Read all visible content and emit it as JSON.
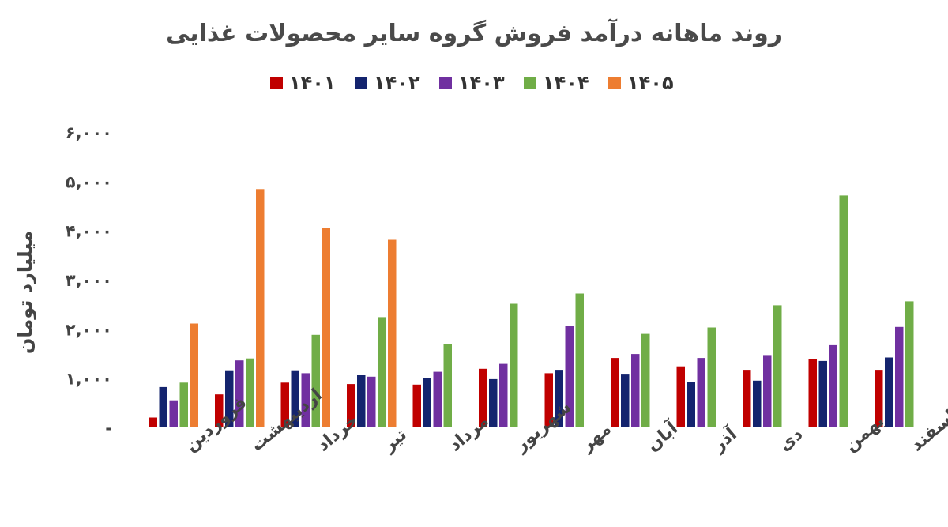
{
  "chart_data": {
    "type": "bar",
    "title": "روند ماهانه درآمد فروش گروه سایر محصولات غذایی",
    "ylabel": "میلیارد تومان",
    "xlabel": "",
    "ylim": [
      0,
      6000
    ],
    "yticks": [
      {
        "value": 0,
        "label": "-"
      },
      {
        "value": 1000,
        "label": "۱,۰۰۰"
      },
      {
        "value": 2000,
        "label": "۲,۰۰۰"
      },
      {
        "value": 3000,
        "label": "۳,۰۰۰"
      },
      {
        "value": 4000,
        "label": "۴,۰۰۰"
      },
      {
        "value": 5000,
        "label": "۵,۰۰۰"
      },
      {
        "value": 6000,
        "label": "۶,۰۰۰"
      }
    ],
    "grid": false,
    "legend_position": "top",
    "categories": [
      "فروردین",
      "اردیبهشت",
      "خرداد",
      "تیر",
      "مرداد",
      "شهریور",
      "مهر",
      "آبان",
      "آذر",
      "دی",
      "بهمن",
      "اسفند"
    ],
    "series": [
      {
        "name": "۱۴۰۱",
        "color": "#c00000",
        "values": [
          200,
          670,
          910,
          880,
          870,
          1190,
          1100,
          1410,
          1240,
          1170,
          1380,
          1170
        ]
      },
      {
        "name": "۱۴۰۲",
        "color": "#14246e",
        "values": [
          820,
          1160,
          1160,
          1060,
          1000,
          980,
          1170,
          1090,
          920,
          950,
          1350,
          1420
        ]
      },
      {
        "name": "۱۴۰۳",
        "color": "#7030a0",
        "values": [
          550,
          1360,
          1100,
          1030,
          1130,
          1290,
          2060,
          1490,
          1410,
          1470,
          1670,
          2040
        ]
      },
      {
        "name": "۱۴۰۴",
        "color": "#70ad47",
        "values": [
          910,
          1400,
          1880,
          2240,
          1690,
          2510,
          2720,
          1900,
          2030,
          2480,
          4710,
          2560
        ]
      },
      {
        "name": "۱۴۰۵",
        "color": "#ed7d31",
        "values": [
          2110,
          4840,
          4050,
          3810,
          null,
          null,
          null,
          null,
          null,
          null,
          null,
          null
        ]
      }
    ]
  }
}
